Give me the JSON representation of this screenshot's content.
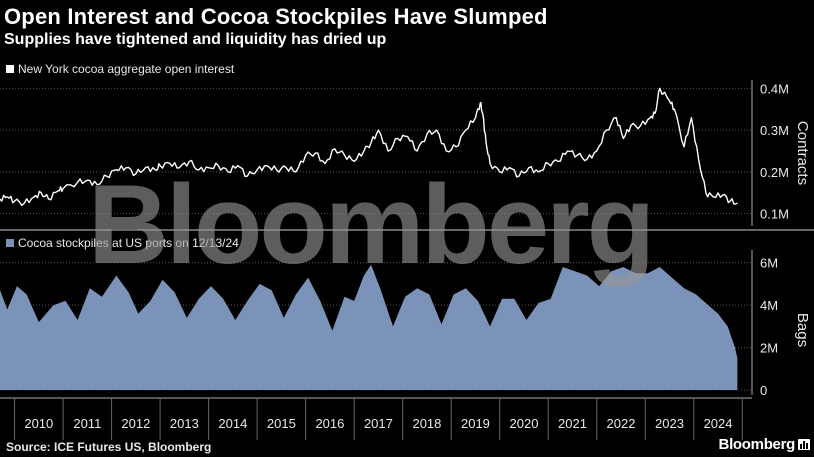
{
  "title": "Open Interest and Cocoa Stockpiles Have Slumped",
  "subtitle": "Supplies have tightened and liquidity has dried up",
  "watermark": "Bloomberg",
  "footer": {
    "source": "Source: ICE Futures US, Bloomberg",
    "brand": "Bloomberg"
  },
  "colors": {
    "background": "#000000",
    "line": "#ffffff",
    "area": "#7b93b8",
    "grid": "#555555",
    "text": "#e8e8e8"
  },
  "chart_data": [
    {
      "type": "line",
      "legend": "New York cocoa aggregate open interest",
      "ylabel": "Contracts",
      "ylim": [
        0.08,
        0.42
      ],
      "yticks": [
        {
          "v": 0.1,
          "label": "0.1M"
        },
        {
          "v": 0.2,
          "label": "0.2M"
        },
        {
          "v": 0.3,
          "label": "0.3M"
        },
        {
          "v": 0.4,
          "label": "0.4M"
        }
      ],
      "series": [
        {
          "name": "New York cocoa aggregate open interest",
          "x": [
            2009.7,
            2009.85,
            2010.0,
            2010.2,
            2010.4,
            2010.55,
            2010.7,
            2010.9,
            2011.0,
            2011.3,
            2011.5,
            2011.7,
            2011.9,
            2012.1,
            2012.3,
            2012.5,
            2012.7,
            2012.9,
            2013.0,
            2013.2,
            2013.4,
            2013.6,
            2013.8,
            2014.0,
            2014.2,
            2014.4,
            2014.6,
            2014.8,
            2015.0,
            2015.2,
            2015.4,
            2015.6,
            2015.8,
            2016.0,
            2016.2,
            2016.4,
            2016.6,
            2016.8,
            2017.0,
            2017.2,
            2017.35,
            2017.5,
            2017.7,
            2017.9,
            2018.1,
            2018.3,
            2018.5,
            2018.7,
            2018.9,
            2019.1,
            2019.3,
            2019.5,
            2019.6,
            2019.65,
            2019.72,
            2019.8,
            2020.0,
            2020.2,
            2020.4,
            2020.6,
            2020.8,
            2021.0,
            2021.2,
            2021.4,
            2021.6,
            2021.8,
            2022.0,
            2022.2,
            2022.4,
            2022.55,
            2022.7,
            2022.9,
            2023.1,
            2023.2,
            2023.3,
            2023.5,
            2023.6,
            2023.8,
            2023.95,
            2024.1,
            2024.25,
            2024.4,
            2024.6,
            2024.75,
            2024.9
          ],
          "y": [
            0.135,
            0.14,
            0.13,
            0.125,
            0.14,
            0.15,
            0.135,
            0.155,
            0.16,
            0.175,
            0.18,
            0.17,
            0.19,
            0.205,
            0.21,
            0.195,
            0.21,
            0.205,
            0.215,
            0.22,
            0.21,
            0.225,
            0.205,
            0.21,
            0.215,
            0.2,
            0.215,
            0.19,
            0.205,
            0.215,
            0.205,
            0.21,
            0.2,
            0.24,
            0.245,
            0.22,
            0.255,
            0.24,
            0.225,
            0.25,
            0.27,
            0.3,
            0.25,
            0.28,
            0.285,
            0.25,
            0.29,
            0.3,
            0.25,
            0.26,
            0.3,
            0.33,
            0.365,
            0.34,
            0.27,
            0.22,
            0.2,
            0.21,
            0.19,
            0.21,
            0.2,
            0.22,
            0.225,
            0.25,
            0.24,
            0.23,
            0.25,
            0.3,
            0.33,
            0.28,
            0.31,
            0.31,
            0.33,
            0.34,
            0.4,
            0.37,
            0.35,
            0.26,
            0.33,
            0.23,
            0.15,
            0.14,
            0.145,
            0.13,
            0.125
          ]
        }
      ]
    },
    {
      "type": "area",
      "legend": "Cocoa stockpiles at US ports on 12/13/24",
      "ylabel": "Bags",
      "ylim": [
        0,
        6.6
      ],
      "yticks": [
        {
          "v": 0,
          "label": "0"
        },
        {
          "v": 2,
          "label": "2M"
        },
        {
          "v": 4,
          "label": "4M"
        },
        {
          "v": 6,
          "label": "6M"
        }
      ],
      "series": [
        {
          "name": "Cocoa stockpiles at US ports",
          "x": [
            2009.7,
            2009.85,
            2010.05,
            2010.25,
            2010.5,
            2010.8,
            2011.05,
            2011.3,
            2011.55,
            2011.8,
            2012.1,
            2012.35,
            2012.55,
            2012.8,
            2013.05,
            2013.3,
            2013.55,
            2013.8,
            2014.05,
            2014.3,
            2014.55,
            2014.8,
            2015.05,
            2015.3,
            2015.55,
            2015.8,
            2016.05,
            2016.3,
            2016.55,
            2016.8,
            2017.0,
            2017.2,
            2017.35,
            2017.55,
            2017.8,
            2018.05,
            2018.3,
            2018.55,
            2018.8,
            2019.05,
            2019.3,
            2019.55,
            2019.8,
            2020.05,
            2020.3,
            2020.55,
            2020.8,
            2021.05,
            2021.3,
            2021.55,
            2021.8,
            2022.05,
            2022.3,
            2022.55,
            2022.8,
            2023.05,
            2023.3,
            2023.55,
            2023.8,
            2024.05,
            2024.3,
            2024.5,
            2024.7,
            2024.85,
            2024.9
          ],
          "y": [
            4.7,
            3.8,
            4.9,
            4.5,
            3.2,
            4.0,
            4.2,
            3.3,
            4.8,
            4.4,
            5.4,
            4.6,
            3.6,
            4.2,
            5.2,
            4.6,
            3.4,
            4.3,
            4.9,
            4.3,
            3.3,
            4.2,
            5.0,
            4.7,
            3.4,
            4.5,
            5.3,
            4.2,
            2.8,
            4.4,
            4.2,
            5.4,
            5.9,
            4.7,
            3.0,
            4.4,
            4.8,
            4.5,
            3.1,
            4.5,
            4.8,
            4.2,
            3.0,
            4.3,
            4.3,
            3.3,
            4.1,
            4.3,
            5.8,
            5.6,
            5.4,
            4.9,
            5.6,
            5.8,
            5.5,
            5.5,
            5.8,
            5.3,
            4.8,
            4.5,
            4.0,
            3.6,
            3.0,
            2.0,
            1.5
          ]
        }
      ]
    }
  ],
  "xaxis": {
    "xlim": [
      2009.7,
      2025.2
    ],
    "ticks": [
      "2010",
      "2011",
      "2012",
      "2013",
      "2014",
      "2015",
      "2016",
      "2017",
      "2018",
      "2019",
      "2020",
      "2021",
      "2022",
      "2023",
      "2024"
    ]
  }
}
